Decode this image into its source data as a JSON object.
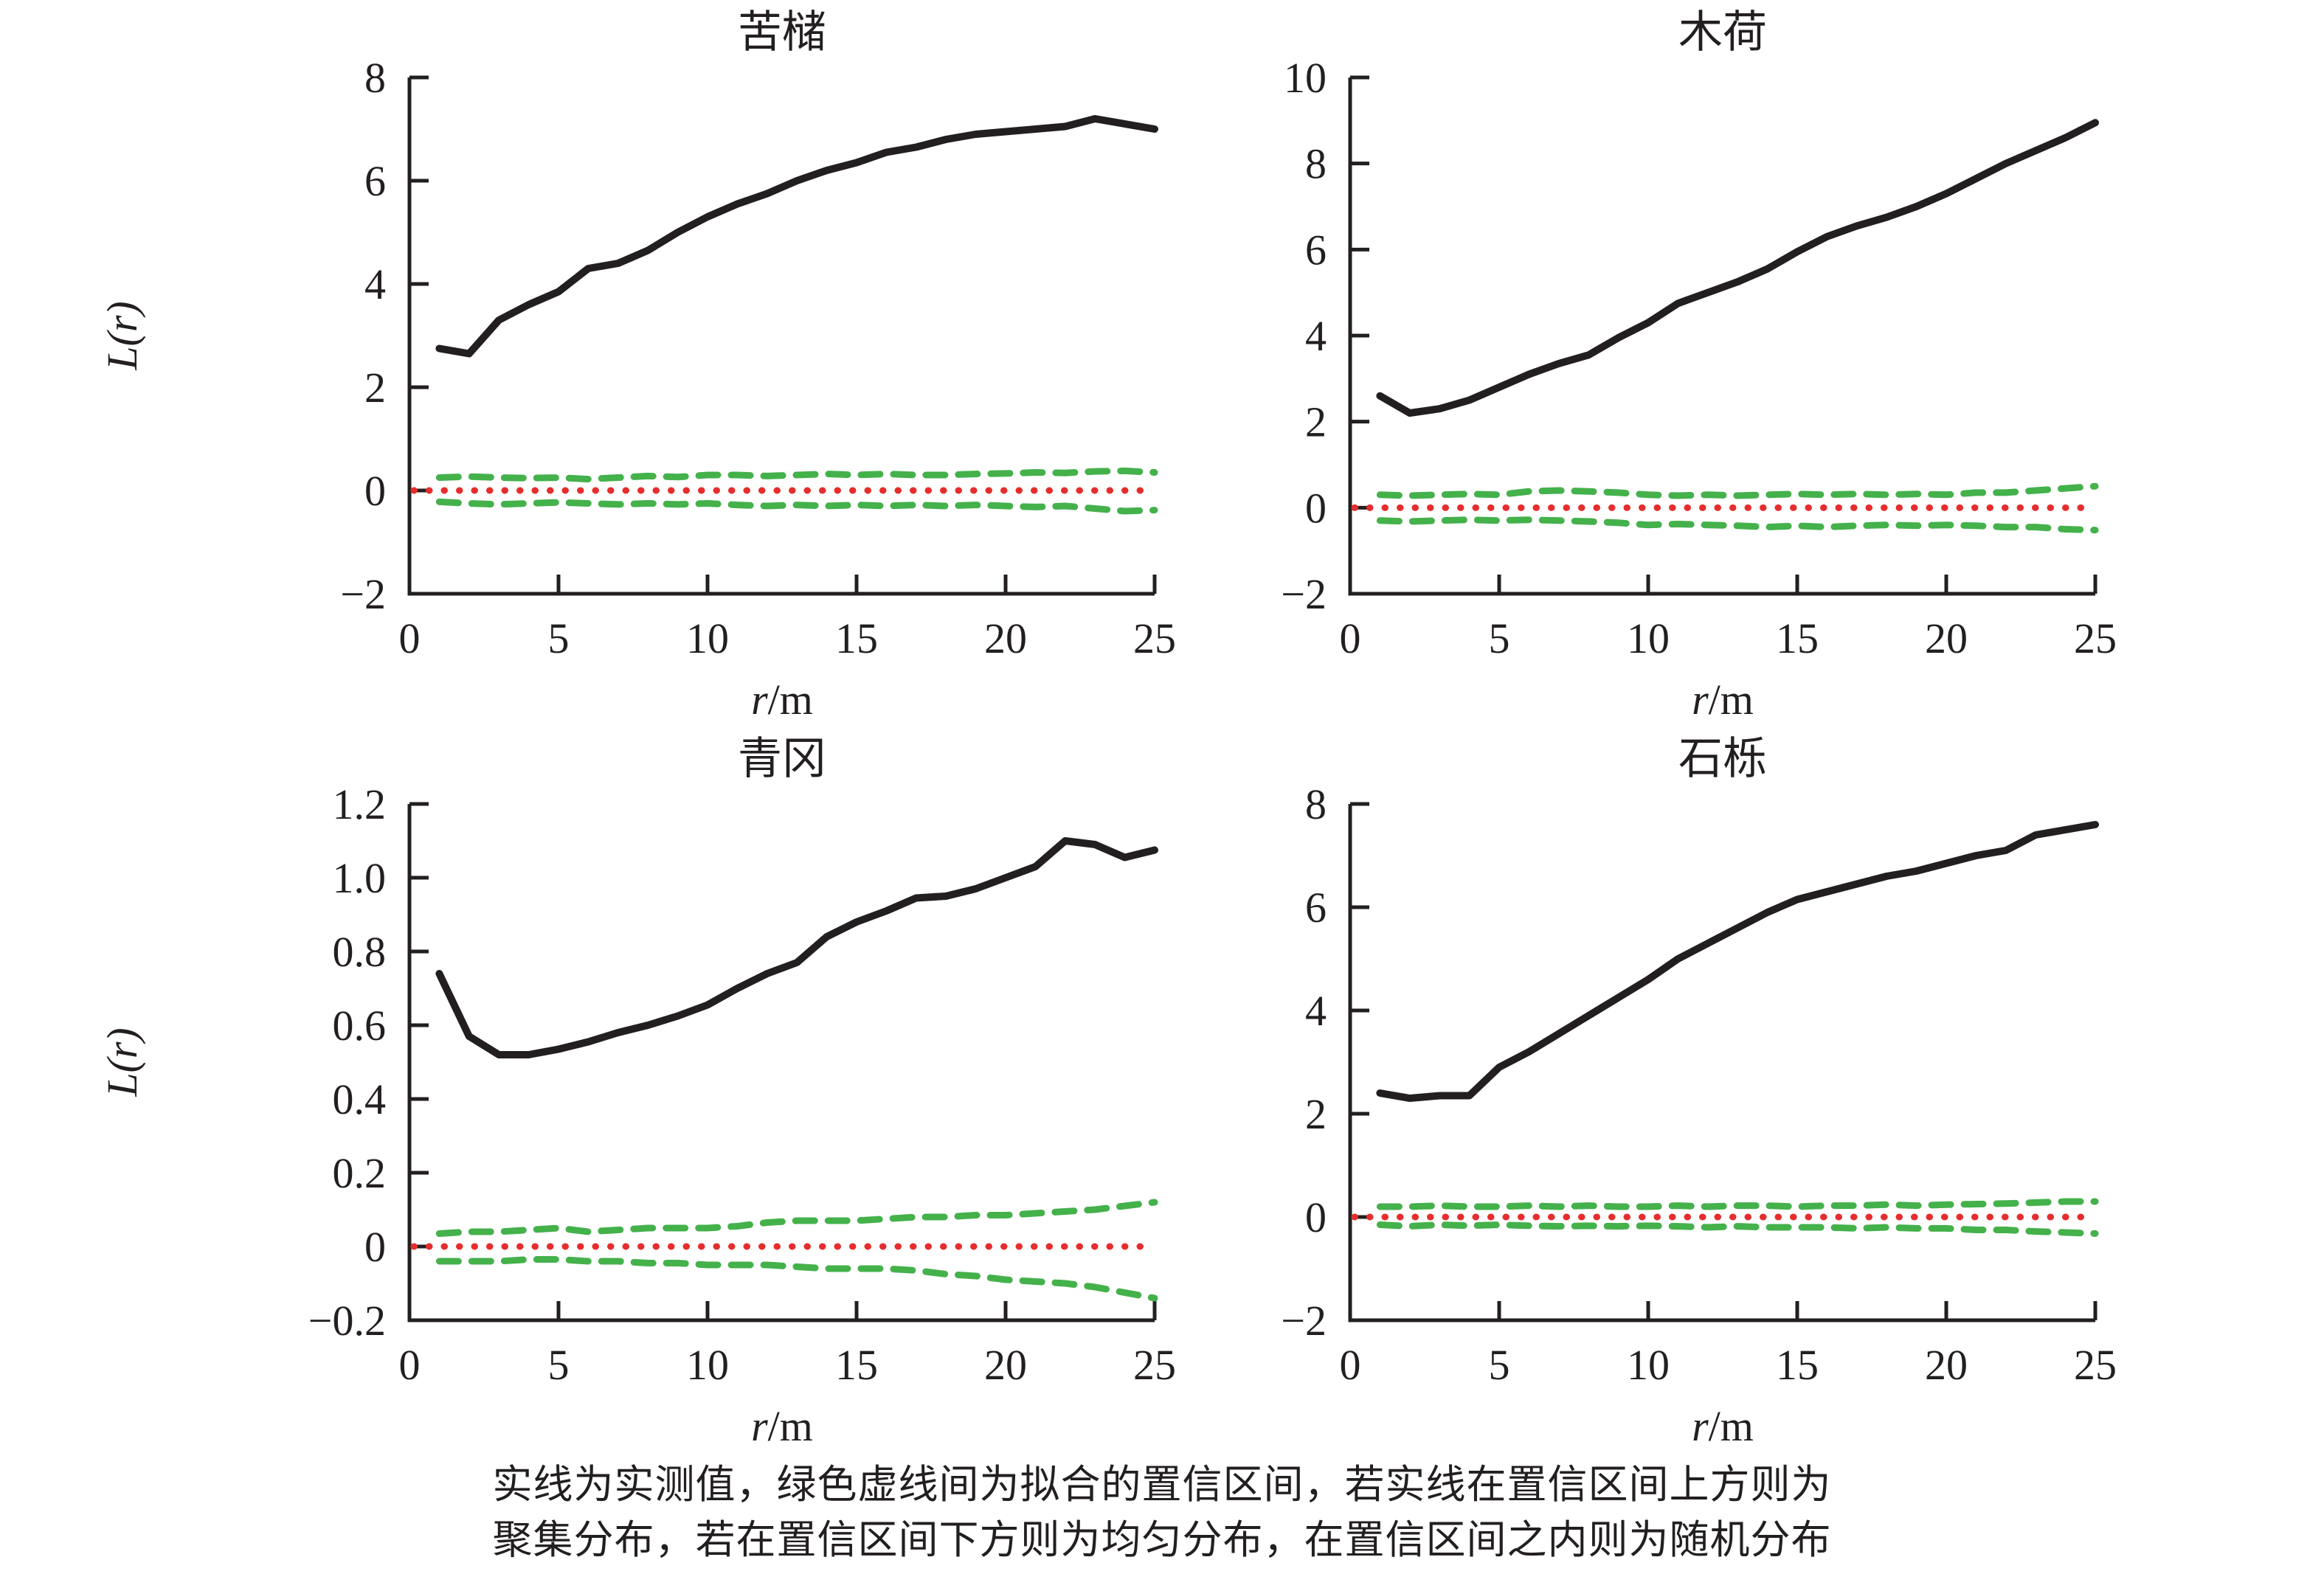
{
  "figure": {
    "background": "#ffffff",
    "text_color": "#231f20"
  },
  "colors": {
    "observed_line": "#231f20",
    "confidence_line": "#44b14b",
    "zero_line": "#e62d2d",
    "axis": "#231f20"
  },
  "caption": {
    "line1": "实线为实测值，绿色虚线间为拟合的置信区间，若实线在置信区间上方则为",
    "line2": "聚集分布，若在置信区间下方则为均匀分布，在置信区间之内则为随机分布"
  },
  "chart_data": [
    {
      "type": "line",
      "title": "苦槠",
      "ylabel": "L(r)",
      "xlabel": "r/m",
      "ylim": [
        -2,
        8
      ],
      "xlim": [
        0,
        25
      ],
      "grid": false,
      "ytick_values": [
        8,
        6,
        4,
        2,
        0,
        -2
      ],
      "ytick_labels": [
        "8",
        "6",
        "4",
        "2",
        "0",
        "−2"
      ],
      "xtick_values": [
        0,
        5,
        10,
        15,
        20,
        25
      ],
      "xtick_labels": [
        "0",
        "5",
        "10",
        "15",
        "20",
        "25"
      ],
      "x": [
        1,
        2,
        3,
        4,
        5,
        6,
        7,
        8,
        9,
        10,
        11,
        12,
        13,
        14,
        15,
        16,
        17,
        18,
        19,
        20,
        21,
        22,
        23,
        24,
        25
      ],
      "series": [
        {
          "name": "observed",
          "values": [
            2.75,
            2.65,
            3.3,
            3.6,
            3.85,
            4.3,
            4.4,
            4.65,
            5.0,
            5.3,
            5.55,
            5.75,
            6.0,
            6.2,
            6.35,
            6.55,
            6.65,
            6.8,
            6.9,
            6.95,
            7.0,
            7.05,
            7.2,
            7.1,
            7.0
          ]
        },
        {
          "name": "ci_upper",
          "values": [
            0.25,
            0.27,
            0.25,
            0.24,
            0.25,
            0.22,
            0.25,
            0.28,
            0.26,
            0.3,
            0.3,
            0.28,
            0.3,
            0.32,
            0.3,
            0.32,
            0.3,
            0.3,
            0.32,
            0.33,
            0.35,
            0.34,
            0.37,
            0.38,
            0.35
          ]
        },
        {
          "name": "ci_lower",
          "values": [
            -0.22,
            -0.25,
            -0.27,
            -0.25,
            -0.23,
            -0.25,
            -0.27,
            -0.25,
            -0.27,
            -0.25,
            -0.28,
            -0.3,
            -0.28,
            -0.3,
            -0.28,
            -0.3,
            -0.28,
            -0.3,
            -0.28,
            -0.3,
            -0.32,
            -0.3,
            -0.35,
            -0.4,
            -0.38
          ]
        },
        {
          "name": "zero",
          "value": 0
        }
      ]
    },
    {
      "type": "line",
      "title": "木荷",
      "ylabel": "",
      "xlabel": "r/m",
      "ylim": [
        -2,
        10
      ],
      "xlim": [
        0,
        25
      ],
      "grid": false,
      "ytick_values": [
        10,
        8,
        6,
        4,
        2,
        0,
        -2
      ],
      "ytick_labels": [
        "10",
        "8",
        "6",
        "4",
        "2",
        "0",
        "−2"
      ],
      "xtick_values": [
        0,
        5,
        10,
        15,
        20,
        25
      ],
      "xtick_labels": [
        "0",
        "5",
        "10",
        "15",
        "20",
        "25"
      ],
      "x": [
        1,
        2,
        3,
        4,
        5,
        6,
        7,
        8,
        9,
        10,
        11,
        12,
        13,
        14,
        15,
        16,
        17,
        18,
        19,
        20,
        21,
        22,
        23,
        24,
        25
      ],
      "series": [
        {
          "name": "observed",
          "values": [
            2.6,
            2.2,
            2.3,
            2.5,
            2.8,
            3.1,
            3.35,
            3.55,
            3.95,
            4.3,
            4.75,
            5.0,
            5.25,
            5.55,
            5.95,
            6.3,
            6.55,
            6.75,
            7.0,
            7.3,
            7.65,
            8.0,
            8.3,
            8.6,
            8.95
          ]
        },
        {
          "name": "ci_upper",
          "values": [
            0.3,
            0.28,
            0.3,
            0.32,
            0.3,
            0.38,
            0.4,
            0.38,
            0.35,
            0.3,
            0.28,
            0.3,
            0.28,
            0.3,
            0.32,
            0.3,
            0.32,
            0.3,
            0.32,
            0.3,
            0.35,
            0.35,
            0.4,
            0.45,
            0.5
          ]
        },
        {
          "name": "ci_lower",
          "values": [
            -0.3,
            -0.32,
            -0.3,
            -0.28,
            -0.3,
            -0.28,
            -0.3,
            -0.32,
            -0.35,
            -0.4,
            -0.38,
            -0.4,
            -0.42,
            -0.45,
            -0.42,
            -0.45,
            -0.42,
            -0.4,
            -0.42,
            -0.4,
            -0.42,
            -0.45,
            -0.45,
            -0.5,
            -0.52
          ]
        },
        {
          "name": "zero",
          "value": 0
        }
      ]
    },
    {
      "type": "line",
      "title": "青冈",
      "ylabel": "L(r)",
      "xlabel": "r/m",
      "ylim": [
        -0.2,
        1.2
      ],
      "xlim": [
        0,
        25
      ],
      "grid": false,
      "ytick_values": [
        1.2,
        1.0,
        0.8,
        0.6,
        0.4,
        0.2,
        0,
        -0.2
      ],
      "ytick_labels": [
        "1.2",
        "1.0",
        "0.8",
        "0.6",
        "0.4",
        "0.2",
        "0",
        "−0.2"
      ],
      "xtick_values": [
        0,
        5,
        10,
        15,
        20,
        25
      ],
      "xtick_labels": [
        "0",
        "5",
        "10",
        "15",
        "20",
        "25"
      ],
      "x": [
        1,
        2,
        3,
        4,
        5,
        6,
        7,
        8,
        9,
        10,
        11,
        12,
        13,
        14,
        15,
        16,
        17,
        18,
        19,
        20,
        21,
        22,
        23,
        24,
        25
      ],
      "series": [
        {
          "name": "observed",
          "values": [
            0.74,
            0.57,
            0.52,
            0.52,
            0.535,
            0.555,
            0.58,
            0.6,
            0.625,
            0.655,
            0.7,
            0.74,
            0.77,
            0.84,
            0.88,
            0.91,
            0.945,
            0.95,
            0.97,
            1.0,
            1.03,
            1.1,
            1.09,
            1.055,
            1.075
          ]
        },
        {
          "name": "ci_upper",
          "values": [
            0.035,
            0.04,
            0.04,
            0.045,
            0.05,
            0.04,
            0.045,
            0.05,
            0.05,
            0.05,
            0.055,
            0.065,
            0.07,
            0.07,
            0.07,
            0.075,
            0.08,
            0.08,
            0.085,
            0.085,
            0.09,
            0.095,
            0.1,
            0.11,
            0.12
          ]
        },
        {
          "name": "ci_lower",
          "values": [
            -0.04,
            -0.04,
            -0.04,
            -0.035,
            -0.035,
            -0.04,
            -0.04,
            -0.045,
            -0.045,
            -0.05,
            -0.05,
            -0.05,
            -0.055,
            -0.06,
            -0.06,
            -0.06,
            -0.065,
            -0.075,
            -0.08,
            -0.09,
            -0.095,
            -0.1,
            -0.11,
            -0.125,
            -0.14
          ]
        },
        {
          "name": "zero",
          "value": 0
        }
      ]
    },
    {
      "type": "line",
      "title": "石栎",
      "ylabel": "",
      "xlabel": "r/m",
      "ylim": [
        -2,
        8
      ],
      "xlim": [
        0,
        25
      ],
      "grid": false,
      "ytick_values": [
        8,
        6,
        4,
        2,
        0,
        -2
      ],
      "ytick_labels": [
        "8",
        "6",
        "4",
        "2",
        "0",
        "−2"
      ],
      "xtick_values": [
        0,
        5,
        10,
        15,
        20,
        25
      ],
      "xtick_labels": [
        "0",
        "5",
        "10",
        "15",
        "20",
        "25"
      ],
      "x": [
        1,
        2,
        3,
        4,
        5,
        6,
        7,
        8,
        9,
        10,
        11,
        12,
        13,
        14,
        15,
        16,
        17,
        18,
        19,
        20,
        21,
        22,
        23,
        24,
        25
      ],
      "series": [
        {
          "name": "observed",
          "values": [
            2.4,
            2.3,
            2.35,
            2.35,
            2.9,
            3.2,
            3.55,
            3.9,
            4.25,
            4.6,
            5.0,
            5.3,
            5.6,
            5.9,
            6.15,
            6.3,
            6.45,
            6.6,
            6.7,
            6.85,
            7.0,
            7.1,
            7.4,
            7.5,
            7.6
          ]
        },
        {
          "name": "ci_upper",
          "values": [
            0.2,
            0.2,
            0.22,
            0.2,
            0.2,
            0.22,
            0.2,
            0.22,
            0.2,
            0.2,
            0.22,
            0.2,
            0.22,
            0.22,
            0.2,
            0.22,
            0.22,
            0.24,
            0.22,
            0.24,
            0.25,
            0.26,
            0.28,
            0.3,
            0.3
          ]
        },
        {
          "name": "ci_lower",
          "values": [
            -0.15,
            -0.18,
            -0.15,
            -0.17,
            -0.15,
            -0.17,
            -0.18,
            -0.17,
            -0.18,
            -0.17,
            -0.18,
            -0.2,
            -0.18,
            -0.2,
            -0.2,
            -0.2,
            -0.22,
            -0.2,
            -0.22,
            -0.22,
            -0.25,
            -0.25,
            -0.28,
            -0.3,
            -0.32
          ]
        },
        {
          "name": "zero",
          "value": 0
        }
      ]
    }
  ]
}
